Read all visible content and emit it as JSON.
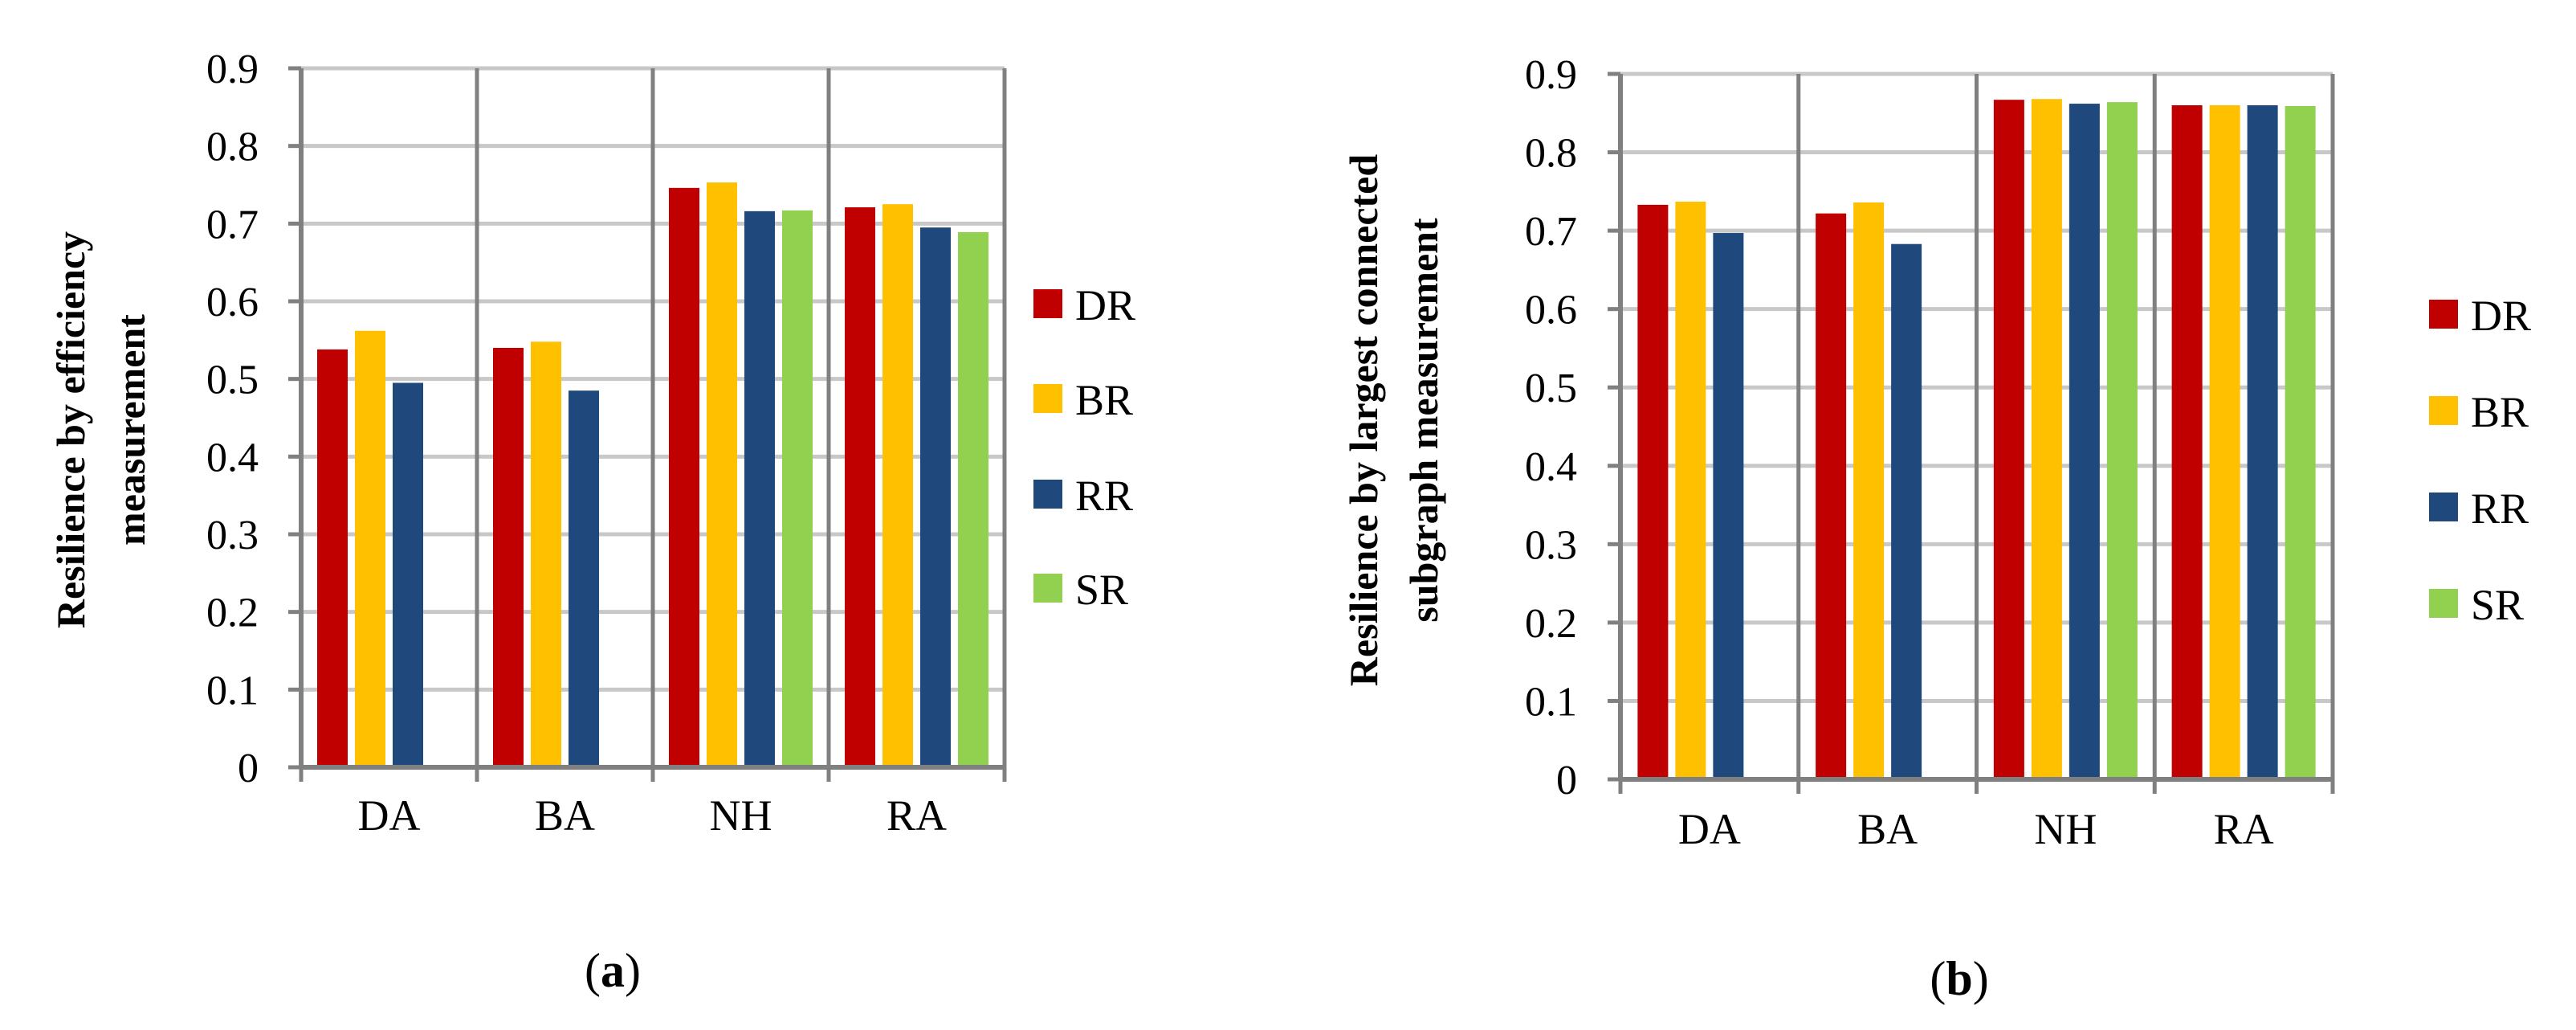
{
  "chart_data": [
    {
      "type": "bar",
      "panel_label": "a",
      "title": "",
      "xlabel": "",
      "ylabel_lines": [
        "Resilience by efficiency",
        "measurement"
      ],
      "categories": [
        "DA",
        "BA",
        "NH",
        "RA"
      ],
      "ylim": [
        0,
        0.9
      ],
      "yticks": [
        "0",
        "0.1",
        "0.2",
        "0.3",
        "0.4",
        "0.5",
        "0.6",
        "0.7",
        "0.8",
        "0.9"
      ],
      "grid": true,
      "legend": "right",
      "series": [
        {
          "name": "DR",
          "color": "#C00000",
          "values": [
            0.538,
            0.54,
            0.746,
            0.721
          ]
        },
        {
          "name": "BR",
          "color": "#FFC000",
          "values": [
            0.562,
            0.548,
            0.753,
            0.725
          ]
        },
        {
          "name": "RR",
          "color": "#1F497D",
          "values": [
            0.495,
            0.485,
            0.716,
            0.695
          ]
        },
        {
          "name": "SR",
          "color": "#92D050",
          "values": [
            null,
            null,
            0.717,
            0.689
          ]
        }
      ]
    },
    {
      "type": "bar",
      "panel_label": "b",
      "title": "",
      "xlabel": "",
      "ylabel_lines": [
        "Resilience by largest connected",
        "subgraph measurement"
      ],
      "categories": [
        "DA",
        "BA",
        "NH",
        "RA"
      ],
      "ylim": [
        0,
        0.9
      ],
      "yticks": [
        "0",
        "0.1",
        "0.2",
        "0.3",
        "0.4",
        "0.5",
        "0.6",
        "0.7",
        "0.8",
        "0.9"
      ],
      "grid": true,
      "legend": "right",
      "series": [
        {
          "name": "DR",
          "color": "#C00000",
          "values": [
            0.733,
            0.722,
            0.867,
            0.86
          ]
        },
        {
          "name": "BR",
          "color": "#FFC000",
          "values": [
            0.737,
            0.736,
            0.868,
            0.86
          ]
        },
        {
          "name": "RR",
          "color": "#1F497D",
          "values": [
            0.697,
            0.683,
            0.862,
            0.86
          ]
        },
        {
          "name": "SR",
          "color": "#92D050",
          "values": [
            null,
            null,
            0.864,
            0.859
          ]
        }
      ]
    }
  ]
}
